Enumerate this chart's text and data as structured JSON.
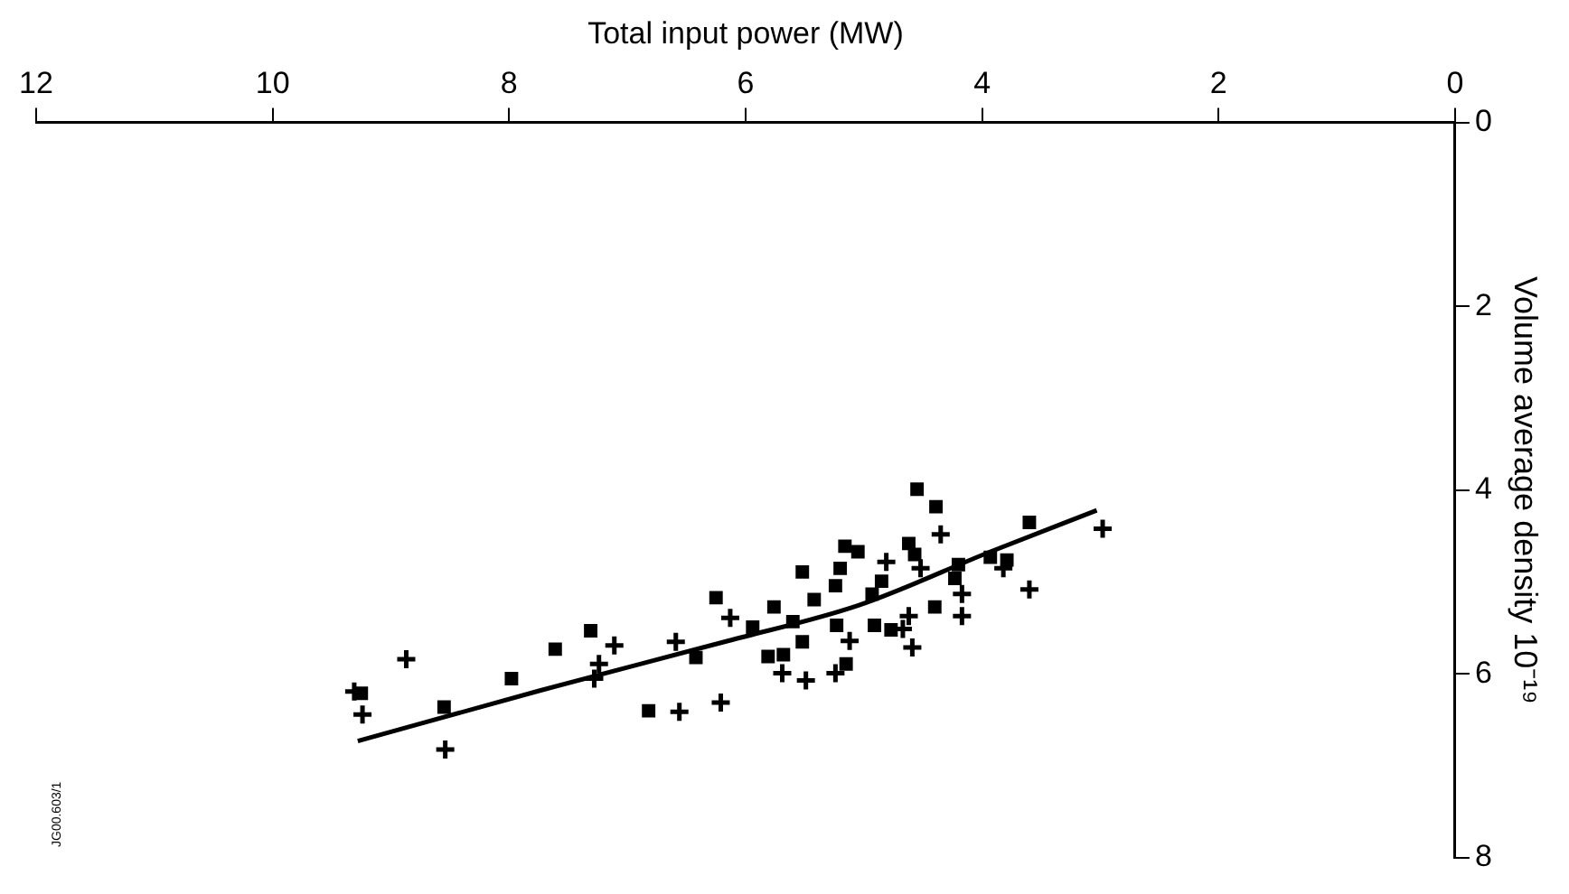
{
  "chart_data": {
    "type": "scatter",
    "xlabel": "Total input power (MW)",
    "ylabel": "Volume average density 10⁻¹⁹",
    "xlim": [
      12,
      0
    ],
    "ylim": [
      8,
      0
    ],
    "xticks": [
      0,
      2,
      4,
      6,
      8,
      10,
      12
    ],
    "yticks": [
      0,
      2,
      4,
      6,
      8
    ],
    "grid": false,
    "legend": false,
    "annotations": [
      "JG00.603/1"
    ],
    "series": [
      {
        "type": "scatter",
        "marker": "square",
        "color": "#000000",
        "x": [
          4.55,
          4.39,
          3.6,
          4.62,
          5.16,
          5.05,
          4.57,
          5.2,
          5.52,
          4.2,
          3.93,
          3.79,
          4.23,
          5.24,
          4.85,
          4.93,
          5.42,
          6.25,
          5.76,
          4.4,
          5.94,
          5.6,
          5.23,
          4.91,
          5.52,
          5.81,
          5.68,
          5.15,
          6.42,
          4.77,
          7.31,
          7.61,
          7.98,
          8.55,
          9.25,
          6.82
        ],
        "values": [
          3.99,
          4.18,
          4.35,
          4.58,
          4.61,
          4.67,
          4.7,
          4.85,
          4.89,
          4.81,
          4.73,
          4.76,
          4.96,
          5.04,
          4.99,
          5.13,
          5.19,
          5.17,
          5.27,
          5.27,
          5.49,
          5.43,
          5.47,
          5.47,
          5.65,
          5.81,
          5.79,
          5.89,
          5.82,
          5.52,
          5.53,
          5.73,
          6.05,
          6.36,
          6.21,
          6.4
        ]
      },
      {
        "type": "scatter",
        "marker": "cross",
        "color": "#000000",
        "x": [
          4.35,
          2.98,
          4.81,
          4.52,
          4.17,
          4.17,
          3.6,
          4.62,
          4.67,
          4.59,
          5.12,
          6.13,
          5.69,
          5.49,
          5.24,
          3.82,
          8.87,
          9.31,
          9.24,
          7.11,
          7.24,
          6.59,
          6.56,
          6.21,
          7.28,
          8.54
        ],
        "values": [
          4.48,
          4.42,
          4.78,
          4.85,
          5.13,
          5.37,
          5.08,
          5.37,
          5.51,
          5.71,
          5.64,
          5.39,
          5.99,
          6.07,
          5.99,
          4.85,
          5.84,
          6.19,
          6.44,
          5.69,
          5.89,
          5.65,
          6.41,
          6.31,
          6.05,
          6.82
        ]
      },
      {
        "type": "line",
        "marker": "none",
        "line_style": "solid",
        "color": "#000000",
        "x": [
          3.03,
          3.93,
          5.04,
          6.15,
          7.74,
          9.28
        ],
        "values": [
          4.22,
          4.67,
          5.25,
          5.64,
          6.18,
          6.73
        ]
      }
    ]
  }
}
